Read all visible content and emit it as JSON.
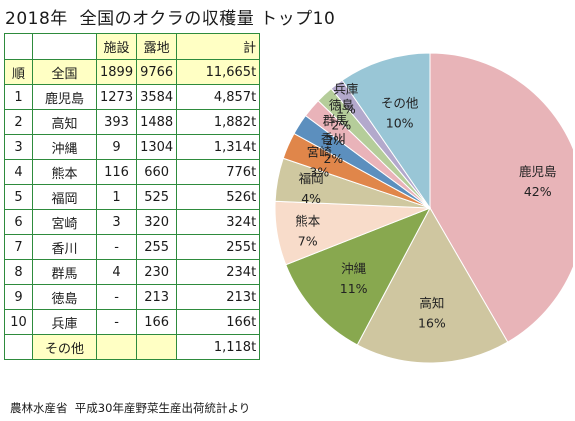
{
  "title": "2018年  全国のオクラの収穫量 トップ10",
  "source": "農林水産省  平成30年産野菜生産出荷統計より",
  "table": {
    "headers": {
      "facility": "施設",
      "field": "露地",
      "total": "計"
    },
    "total_row": {
      "rank": "順",
      "name": "全国",
      "facility": "1899",
      "field": "9766",
      "total": "11,665t"
    },
    "rows": [
      {
        "rank": "1",
        "name": "鹿児島",
        "facility": "1273",
        "field": "3584",
        "total": "4,857t"
      },
      {
        "rank": "2",
        "name": "高知",
        "facility": "393",
        "field": "1488",
        "total": "1,882t"
      },
      {
        "rank": "3",
        "name": "沖縄",
        "facility": "9",
        "field": "1304",
        "total": "1,314t"
      },
      {
        "rank": "4",
        "name": "熊本",
        "facility": "116",
        "field": "660",
        "total": "776t"
      },
      {
        "rank": "5",
        "name": "福岡",
        "facility": "1",
        "field": "525",
        "total": "526t"
      },
      {
        "rank": "6",
        "name": "宮崎",
        "facility": "3",
        "field": "320",
        "total": "324t"
      },
      {
        "rank": "7",
        "name": "香川",
        "facility": "-",
        "field": "255",
        "total": "255t"
      },
      {
        "rank": "8",
        "name": "群馬",
        "facility": "4",
        "field": "230",
        "total": "234t"
      },
      {
        "rank": "9",
        "name": "徳島",
        "facility": "-",
        "field": "213",
        "total": "213t"
      },
      {
        "rank": "10",
        "name": "兵庫",
        "facility": "-",
        "field": "166",
        "total": "166t"
      }
    ],
    "other_row": {
      "name": "その他",
      "total": "1,118t"
    }
  },
  "chart_data": {
    "type": "pie",
    "categories": [
      "鹿児島",
      "高知",
      "沖縄",
      "熊本",
      "福岡",
      "宮崎",
      "香川",
      "群馬",
      "徳島",
      "兵庫",
      "その他"
    ],
    "values": [
      4857,
      1882,
      1314,
      776,
      526,
      324,
      255,
      234,
      213,
      166,
      1118
    ],
    "labels": [
      "42%",
      "16%",
      "11%",
      "7%",
      "4%",
      "3%",
      "2%",
      "2%",
      "2%",
      "1%",
      "10%"
    ],
    "colors": [
      "#e8b4b8",
      "#cfc6a0",
      "#88a84f",
      "#f8dcca",
      "#cfc8a0",
      "#e0864a",
      "#5c8fbe",
      "#e9b3b9",
      "#b5cd9a",
      "#b3a9cc",
      "#99c6d6"
    ],
    "start_angle_deg": 0,
    "clockwise": true
  }
}
